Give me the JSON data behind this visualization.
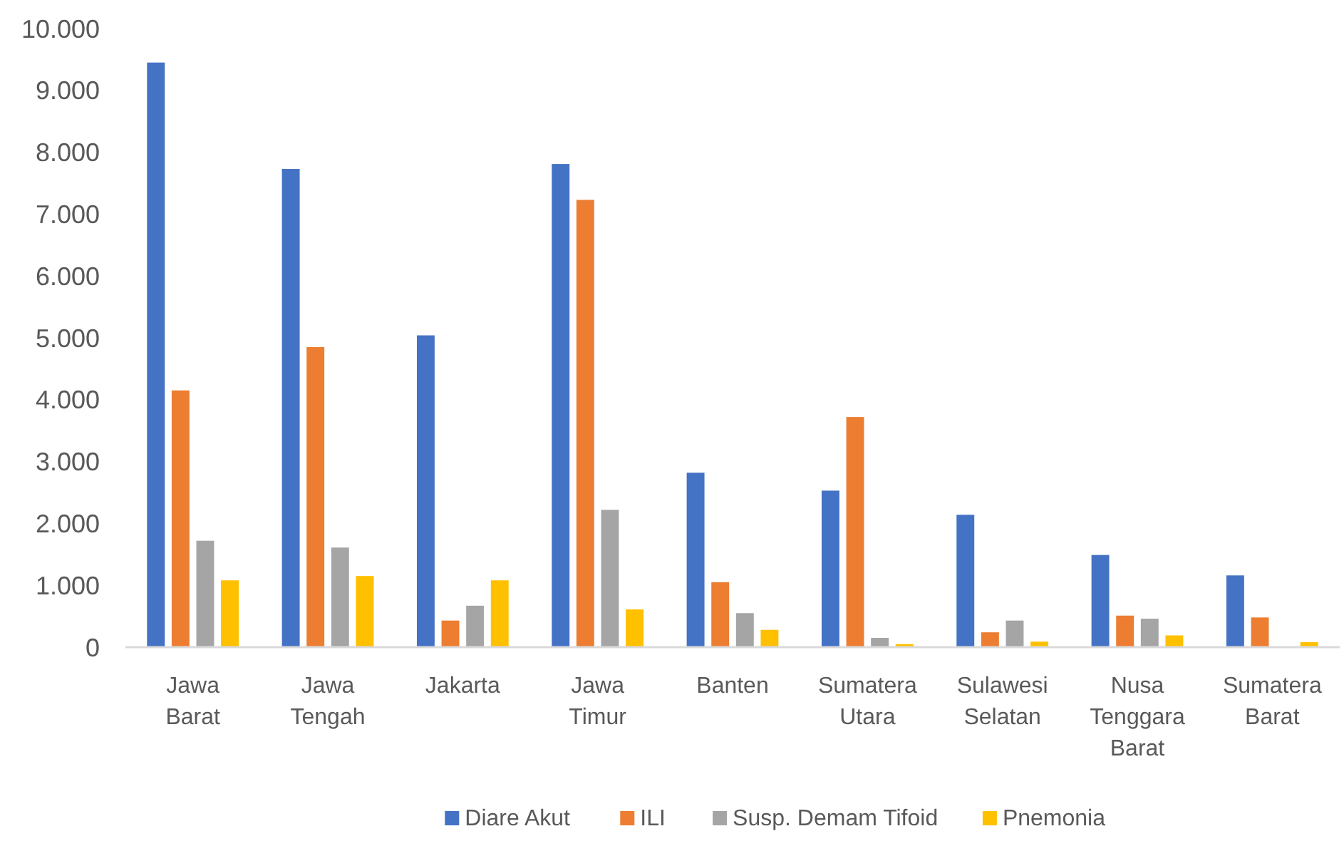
{
  "chart_data": {
    "type": "bar",
    "categories": [
      "Jawa Barat",
      "Jawa Tengah",
      "Jakarta",
      "Jawa Timur",
      "Banten",
      "Sumatera Utara",
      "Sulawesi Selatan",
      "Nusa Tenggara Barat",
      "Sumatera Barat"
    ],
    "series": [
      {
        "name": "Diare Akut",
        "color": "#4472c4",
        "values": [
          9450,
          7730,
          5040,
          7810,
          2820,
          2530,
          2140,
          1490,
          1160
        ]
      },
      {
        "name": "ILI",
        "color": "#ed7d31",
        "values": [
          4150,
          4850,
          430,
          7230,
          1050,
          3720,
          240,
          510,
          480
        ]
      },
      {
        "name": "Susp. Demam Tifoid",
        "color": "#a5a5a5",
        "values": [
          1720,
          1610,
          670,
          2220,
          550,
          150,
          430,
          460,
          0
        ]
      },
      {
        "name": "Pnemonia",
        "color": "#ffc000",
        "values": [
          1080,
          1150,
          1080,
          610,
          280,
          50,
          90,
          190,
          80
        ]
      }
    ],
    "ylim": [
      0,
      10000
    ],
    "yticks": [
      0,
      {
        "value": 1000,
        "label": "1.000"
      },
      {
        "value": 2000,
        "label": "2.000"
      },
      {
        "value": 3000,
        "label": "3.000"
      },
      {
        "value": 4000,
        "label": "4.000"
      },
      {
        "value": 5000,
        "label": "5.000"
      },
      {
        "value": 6000,
        "label": "6.000"
      },
      {
        "value": 7000,
        "label": "7.000"
      },
      {
        "value": 8000,
        "label": "8.000"
      },
      {
        "value": 9000,
        "label": "9.000"
      },
      {
        "value": 10000,
        "label": "10.000"
      }
    ],
    "grid": false,
    "legend": "bottom"
  }
}
